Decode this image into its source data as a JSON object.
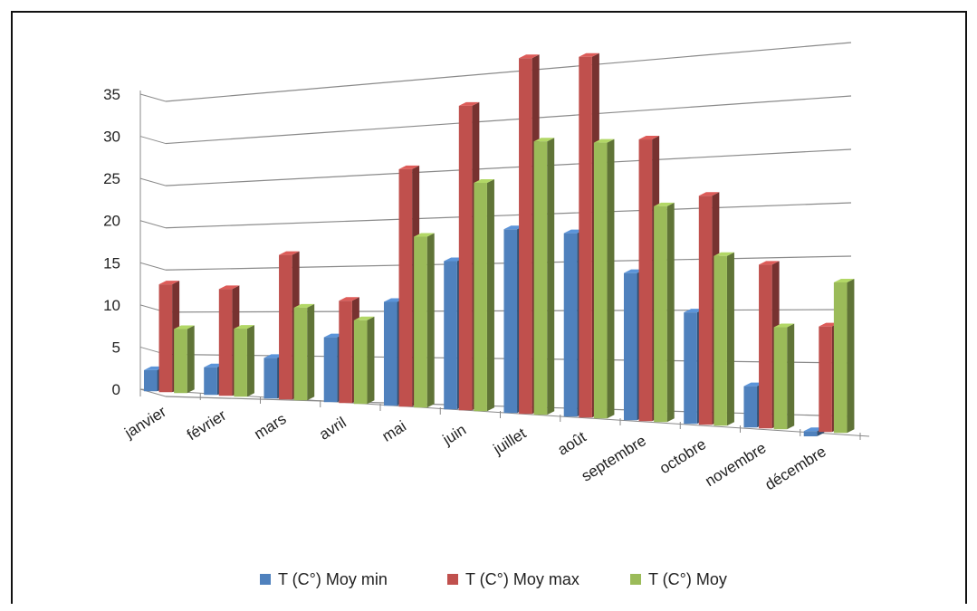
{
  "chart_data": {
    "type": "bar",
    "style": "3d-clustered-column",
    "categories": [
      "janvier",
      "février",
      "mars",
      "avril",
      "mai",
      "juin",
      "juillet",
      "août",
      "septembre",
      "octobre",
      "novembre",
      "décembre"
    ],
    "series": [
      {
        "name": "T (C°) Moy min",
        "color": "#4F81BD",
        "values": [
          2.5,
          3.2,
          4.6,
          7.2,
          11.3,
          15.8,
          19.2,
          18.8,
          14.8,
          11.0,
          4.0,
          -0.5
        ]
      },
      {
        "name": "T (C°) Moy max",
        "color": "#C0504D",
        "values": [
          12.7,
          12.3,
          16.3,
          11.3,
          25.7,
          32.3,
          37.0,
          36.8,
          28.2,
          22.5,
          15.8,
          10.0
        ]
      },
      {
        "name": "T (C°) Moy",
        "color": "#9BBB59",
        "values": [
          7.5,
          7.8,
          10.4,
          9.2,
          18.4,
          24.1,
          28.3,
          28.0,
          21.5,
          16.6,
          9.8,
          14.2
        ]
      }
    ],
    "yticks": [
      0,
      5,
      10,
      15,
      20,
      25,
      30,
      35
    ],
    "ylim": [
      0,
      35
    ],
    "grid": true,
    "legend_position": "bottom"
  }
}
